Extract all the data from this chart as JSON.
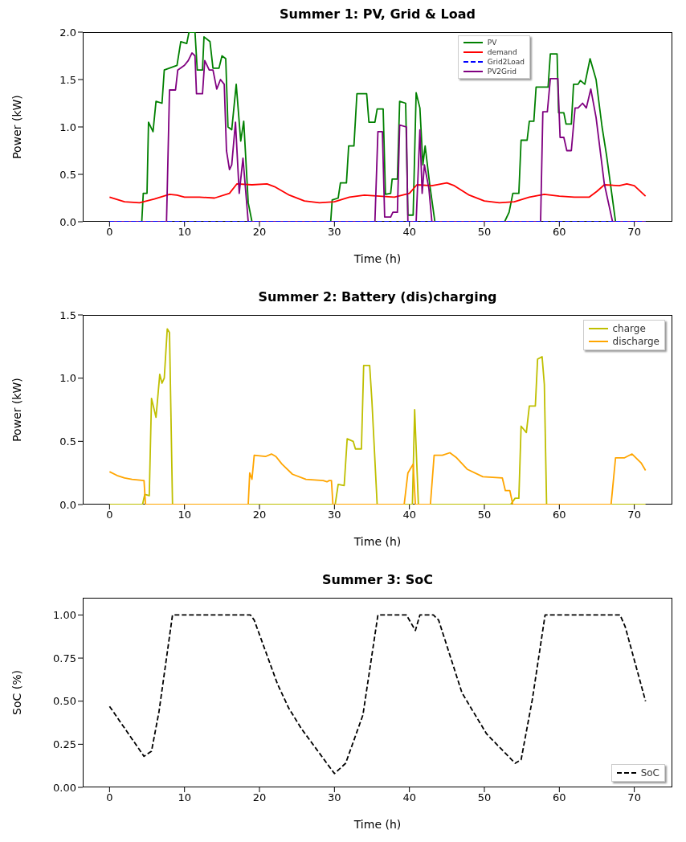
{
  "chart_data": [
    {
      "type": "line",
      "title": "Summer 1: PV, Grid & Load",
      "xlabel": "Time (h)",
      "ylabel": "Power (kW)",
      "xlim": [
        -3.575,
        75.075
      ],
      "xticks": [
        0,
        10,
        20,
        30,
        40,
        50,
        60,
        70
      ],
      "ylim": [
        0,
        2.0
      ],
      "yticks": [
        {
          "value": 0,
          "label": "0.0"
        },
        {
          "value": 0.5,
          "label": "0.5"
        },
        {
          "value": 1,
          "label": "1.0"
        },
        {
          "value": 1.5,
          "label": "1.5"
        },
        {
          "value": 2,
          "label": "2.0"
        }
      ],
      "legend": "top",
      "series": [
        {
          "name": "PV",
          "color": "#008000",
          "x": [
            0,
            4.3,
            4.5,
            5.0,
            5.2,
            5.8,
            6.2,
            7.0,
            7.3,
            9.0,
            9.5,
            10.3,
            10.6,
            11.4,
            11.7,
            12.4,
            12.6,
            13.4,
            13.8,
            14.6,
            15.0,
            15.5,
            15.8,
            16.3,
            16.9,
            17.5,
            17.9,
            18.5,
            19.0,
            29.5,
            29.7,
            30.5,
            30.8,
            31.6,
            31.9,
            32.6,
            33.0,
            34.3,
            34.6,
            35.4,
            35.7,
            36.5,
            36.8,
            37.5,
            37.7,
            38.4,
            38.7,
            39.5,
            39.8,
            40.5,
            40.9,
            41.4,
            41.8,
            42.1,
            42.7,
            43.4,
            52.7,
            53.3,
            53.8,
            54.6,
            54.9,
            55.7,
            56.0,
            56.6,
            56.9,
            58.5,
            58.8,
            59.7,
            59.9,
            60.6,
            60.9,
            61.6,
            61.9,
            62.5,
            62.8,
            63.4,
            64.1,
            64.9,
            65.7,
            66.3,
            67.5,
            71.5
          ],
          "values": [
            0,
            0,
            0.3,
            0.3,
            1.05,
            0.95,
            1.27,
            1.25,
            1.6,
            1.65,
            1.9,
            1.88,
            2.0,
            2.0,
            1.6,
            1.6,
            1.95,
            1.9,
            1.62,
            1.62,
            1.75,
            1.72,
            1.0,
            0.97,
            1.45,
            0.85,
            1.06,
            0.2,
            0,
            0,
            0.23,
            0.25,
            0.41,
            0.41,
            0.8,
            0.8,
            1.35,
            1.35,
            1.05,
            1.05,
            1.19,
            1.19,
            0.29,
            0.3,
            0.45,
            0.45,
            1.27,
            1.25,
            0.07,
            0.07,
            1.36,
            1.2,
            0.6,
            0.8,
            0.4,
            0,
            0,
            0.1,
            0.3,
            0.3,
            0.86,
            0.86,
            1.06,
            1.06,
            1.42,
            1.42,
            1.77,
            1.77,
            1.15,
            1.15,
            1.03,
            1.03,
            1.45,
            1.45,
            1.49,
            1.45,
            1.72,
            1.5,
            1.0,
            0.7,
            0,
            0
          ]
        },
        {
          "name": "demand",
          "color": "#ff0000",
          "x": [
            0,
            2,
            4,
            6,
            8,
            9,
            10,
            12,
            14,
            16,
            17,
            19,
            21,
            22,
            24,
            26,
            28,
            30,
            32,
            34,
            36,
            38,
            40,
            41,
            43,
            45,
            46,
            48,
            50,
            52,
            54,
            56,
            58,
            60,
            62,
            64,
            65,
            66,
            68,
            69,
            70,
            71.5
          ],
          "values": [
            0.26,
            0.21,
            0.2,
            0.24,
            0.29,
            0.28,
            0.26,
            0.26,
            0.25,
            0.3,
            0.4,
            0.39,
            0.4,
            0.37,
            0.28,
            0.22,
            0.2,
            0.21,
            0.26,
            0.28,
            0.27,
            0.26,
            0.3,
            0.39,
            0.38,
            0.41,
            0.38,
            0.28,
            0.22,
            0.2,
            0.21,
            0.26,
            0.29,
            0.27,
            0.26,
            0.26,
            0.32,
            0.39,
            0.38,
            0.4,
            0.38,
            0.27
          ]
        },
        {
          "name": "Grid2Load",
          "color": "#0000ff",
          "line_style": "dashed",
          "x": [
            0,
            71.5
          ],
          "values": [
            0,
            0
          ]
        },
        {
          "name": "PV2Grid",
          "color": "#800080",
          "x": [
            0,
            7.6,
            8.0,
            8.8,
            9.1,
            10.0,
            10.5,
            11.0,
            11.4,
            11.6,
            12.4,
            12.7,
            13.3,
            13.8,
            14.3,
            14.8,
            15.3,
            15.6,
            16.0,
            16.3,
            16.8,
            17.3,
            17.8,
            18.5,
            35.4,
            35.8,
            36.4,
            36.7,
            37.5,
            37.8,
            38.4,
            38.7,
            39.6,
            39.8,
            40.9,
            41.4,
            41.7,
            42.0,
            42.6,
            43.0,
            57.5,
            57.8,
            58.4,
            58.8,
            59.8,
            60.1,
            60.6,
            61.0,
            61.6,
            62.1,
            62.5,
            63.1,
            63.6,
            64.2,
            64.9,
            66.0,
            67.1,
            71.5
          ],
          "values": [
            0,
            0,
            1.39,
            1.39,
            1.6,
            1.65,
            1.7,
            1.78,
            1.75,
            1.35,
            1.35,
            1.7,
            1.6,
            1.6,
            1.4,
            1.5,
            1.45,
            0.75,
            0.55,
            0.6,
            1.05,
            0.3,
            0.67,
            0,
            0,
            0.95,
            0.95,
            0.05,
            0.05,
            0.1,
            0.1,
            1.02,
            1.0,
            0,
            0,
            0.97,
            0.3,
            0.6,
            0.35,
            0,
            0,
            1.16,
            1.16,
            1.51,
            1.51,
            0.89,
            0.89,
            0.75,
            0.75,
            1.2,
            1.2,
            1.25,
            1.2,
            1.4,
            1.1,
            0.4,
            0,
            0
          ]
        }
      ]
    },
    {
      "type": "line",
      "title": "Summer 2: Battery (dis)charging",
      "xlabel": "Time (h)",
      "ylabel": "Power (kW)",
      "xlim": [
        -3.575,
        75.075
      ],
      "xticks": [
        0,
        10,
        20,
        30,
        40,
        50,
        60,
        70
      ],
      "ylim": [
        0,
        1.5
      ],
      "yticks": [
        {
          "value": 0,
          "label": "0.0"
        },
        {
          "value": 0.5,
          "label": "0.5"
        },
        {
          "value": 1,
          "label": "1.0"
        },
        {
          "value": 1.5,
          "label": "1.5"
        }
      ],
      "legend": "top right",
      "series": [
        {
          "name": "charge",
          "color": "#bfbf00",
          "x": [
            0,
            4.4,
            4.7,
            5.3,
            5.6,
            6.2,
            6.7,
            7.0,
            7.3,
            7.7,
            8.0,
            8.4,
            30.1,
            30.5,
            31.3,
            31.7,
            32.5,
            32.8,
            33.6,
            33.9,
            34.7,
            35.0,
            35.7,
            40.4,
            40.7,
            41.2,
            53.5,
            54.1,
            54.6,
            54.9,
            55.6,
            56.0,
            56.8,
            57.1,
            57.7,
            58.0,
            58.3,
            71.5
          ],
          "values": [
            0,
            0,
            0.08,
            0.07,
            0.84,
            0.69,
            1.03,
            0.96,
            1.0,
            1.39,
            1.36,
            0,
            0,
            0.16,
            0.15,
            0.52,
            0.5,
            0.44,
            0.44,
            1.1,
            1.1,
            0.82,
            0,
            0,
            0.75,
            0,
            0,
            0.05,
            0.05,
            0.62,
            0.57,
            0.78,
            0.78,
            1.15,
            1.17,
            0.95,
            0,
            0
          ]
        },
        {
          "name": "discharge",
          "color": "#ffa500",
          "x": [
            0,
            1,
            2,
            3,
            4.6,
            4.8,
            18.5,
            18.7,
            19.0,
            19.3,
            20.8,
            21.6,
            22.2,
            23,
            24.4,
            26.2,
            28.5,
            29.0,
            29.3,
            29.6,
            29.8,
            39.3,
            39.8,
            40.5,
            40.8,
            42.8,
            43.3,
            44.4,
            45.4,
            46.3,
            47.7,
            49.8,
            52.4,
            52.8,
            53.4,
            53.8,
            66.9,
            67.5,
            68.7,
            69.7,
            70.9,
            71.5
          ],
          "values": [
            0.26,
            0.23,
            0.21,
            0.2,
            0.19,
            0,
            0,
            0.25,
            0.2,
            0.39,
            0.38,
            0.4,
            0.38,
            0.32,
            0.24,
            0.2,
            0.19,
            0.18,
            0.19,
            0.19,
            0,
            0,
            0.25,
            0.32,
            0,
            0,
            0.39,
            0.39,
            0.41,
            0.37,
            0.28,
            0.22,
            0.21,
            0.11,
            0.11,
            0,
            0,
            0.37,
            0.37,
            0.4,
            0.33,
            0.27
          ]
        }
      ]
    },
    {
      "type": "line",
      "title": "Summer 3: SoC",
      "xlabel": "Time (h)",
      "ylabel": "SoC (%)",
      "xlim": [
        -3.575,
        75.075
      ],
      "xticks": [
        0,
        10,
        20,
        30,
        40,
        50,
        60,
        70
      ],
      "ylim": [
        0,
        1.1
      ],
      "yticks": [
        {
          "value": 0,
          "label": "0.00"
        },
        {
          "value": 0.25,
          "label": "0.25"
        },
        {
          "value": 0.5,
          "label": "0.50"
        },
        {
          "value": 0.75,
          "label": "0.75"
        },
        {
          "value": 1,
          "label": "1.00"
        }
      ],
      "legend": "bottom right",
      "series": [
        {
          "name": "SoC",
          "color": "#000000",
          "line_style": "dashed",
          "x": [
            0,
            4.6,
            5.6,
            6.6,
            8.4,
            18.8,
            19.3,
            22.4,
            23.9,
            25.6,
            30,
            31.5,
            33.8,
            35.8,
            39.6,
            40.8,
            41.4,
            43.2,
            43.9,
            47,
            48.5,
            50.3,
            54.1,
            54.9,
            56.4,
            58.1,
            68.1,
            68.8,
            71.5
          ],
          "values": [
            0.47,
            0.18,
            0.21,
            0.44,
            1.0,
            1.0,
            0.97,
            0.6,
            0.46,
            0.34,
            0.08,
            0.14,
            0.42,
            1.0,
            1.0,
            0.91,
            1.0,
            1.0,
            0.97,
            0.55,
            0.44,
            0.31,
            0.14,
            0.16,
            0.51,
            1.0,
            1.0,
            0.93,
            0.5
          ]
        }
      ]
    }
  ]
}
